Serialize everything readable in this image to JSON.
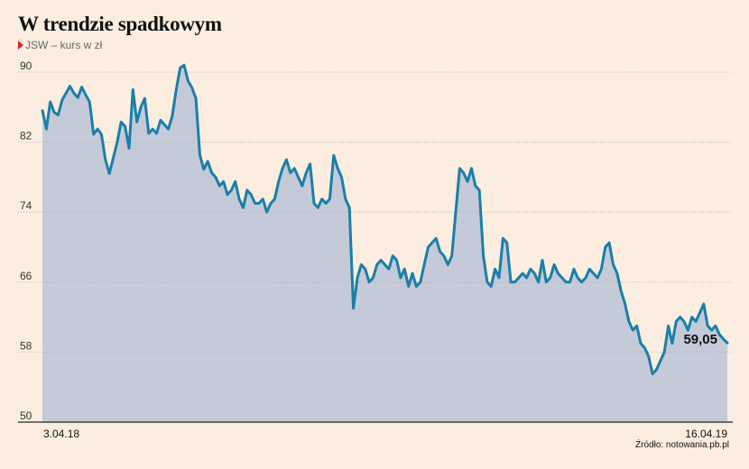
{
  "header": {
    "title": "W trendzie spadkowym",
    "subtitle": "JSW – kurs w zł"
  },
  "footer": {
    "source": "Źródło: notowania.pb.pl"
  },
  "colors": {
    "line": "#1a7fa8",
    "area": "#c5cad8",
    "grid": "#b8b0a8",
    "baseline": "#222222",
    "marker": "#e2231a"
  },
  "chart_data": {
    "type": "area",
    "title": "W trendzie spadkowym",
    "subtitle": "JSW – kurs w zł",
    "xlabel": "",
    "ylabel": "",
    "ylim": [
      50,
      90
    ],
    "yticks": [
      50,
      58,
      66,
      74,
      82,
      90
    ],
    "xlim": [
      "2018-04-03",
      "2019-04-16"
    ],
    "xtick_labels": [
      "3.04.18",
      "16.04.19"
    ],
    "grid": true,
    "last_value_label": "59,05",
    "series": [
      {
        "values": [
          85.6,
          83.5,
          86.6,
          85.4,
          85.1,
          86.8,
          87.6,
          88.4,
          87.6,
          87.1,
          88.3,
          87.4,
          86.6,
          82.9,
          83.5,
          82.9,
          80.0,
          78.4,
          80.2,
          82.0,
          84.3,
          83.8,
          81.3,
          88.0,
          84.3,
          86.0,
          87.0,
          83.0,
          83.5,
          83.0,
          84.5,
          84.0,
          83.5,
          85.0,
          88.0,
          90.5,
          90.8,
          89.0,
          88.2,
          87.0,
          80.5,
          78.9,
          79.8,
          78.5,
          78.0,
          77.0,
          77.5,
          76.0,
          76.5,
          77.5,
          75.5,
          74.5,
          76.5,
          76.0,
          75.0,
          75.0,
          75.5,
          74.0,
          75.0,
          75.5,
          77.5,
          79.0,
          80.0,
          78.5,
          79.0,
          78.0,
          77.0,
          78.5,
          79.5,
          75.0,
          74.5,
          75.5,
          75.0,
          75.5,
          80.5,
          79.0,
          78.0,
          75.5,
          74.5,
          63.0,
          66.5,
          68.0,
          67.5,
          66.0,
          66.5,
          68.0,
          68.5,
          68.0,
          67.5,
          69.0,
          68.5,
          66.5,
          67.5,
          65.5,
          67.0,
          65.5,
          66.0,
          68.0,
          70.0,
          70.5,
          71.0,
          69.5,
          69.0,
          68.0,
          69.0,
          74.0,
          79.0,
          78.5,
          77.5,
          79.0,
          77.0,
          76.5,
          69.0,
          66.0,
          65.5,
          67.5,
          66.5,
          71.0,
          70.5,
          66.0,
          66.0,
          66.5,
          67.0,
          66.5,
          67.5,
          67.0,
          66.0,
          68.5,
          66.0,
          66.5,
          68.0,
          67.0,
          66.5,
          66.0,
          66.0,
          67.5,
          66.5,
          66.0,
          66.5,
          67.5,
          67.0,
          66.5,
          67.5,
          70.0,
          70.5,
          68.0,
          67.0,
          65.0,
          63.5,
          61.5,
          60.5,
          61.0,
          59.0,
          58.5,
          57.5,
          55.5,
          56.0,
          57.0,
          58.0,
          61.0,
          59.0,
          61.5,
          62.0,
          61.5,
          60.5,
          62.0,
          61.5,
          62.5,
          63.5,
          61.0,
          60.5,
          61.0,
          60.0,
          59.5,
          59.05
        ]
      }
    ]
  }
}
